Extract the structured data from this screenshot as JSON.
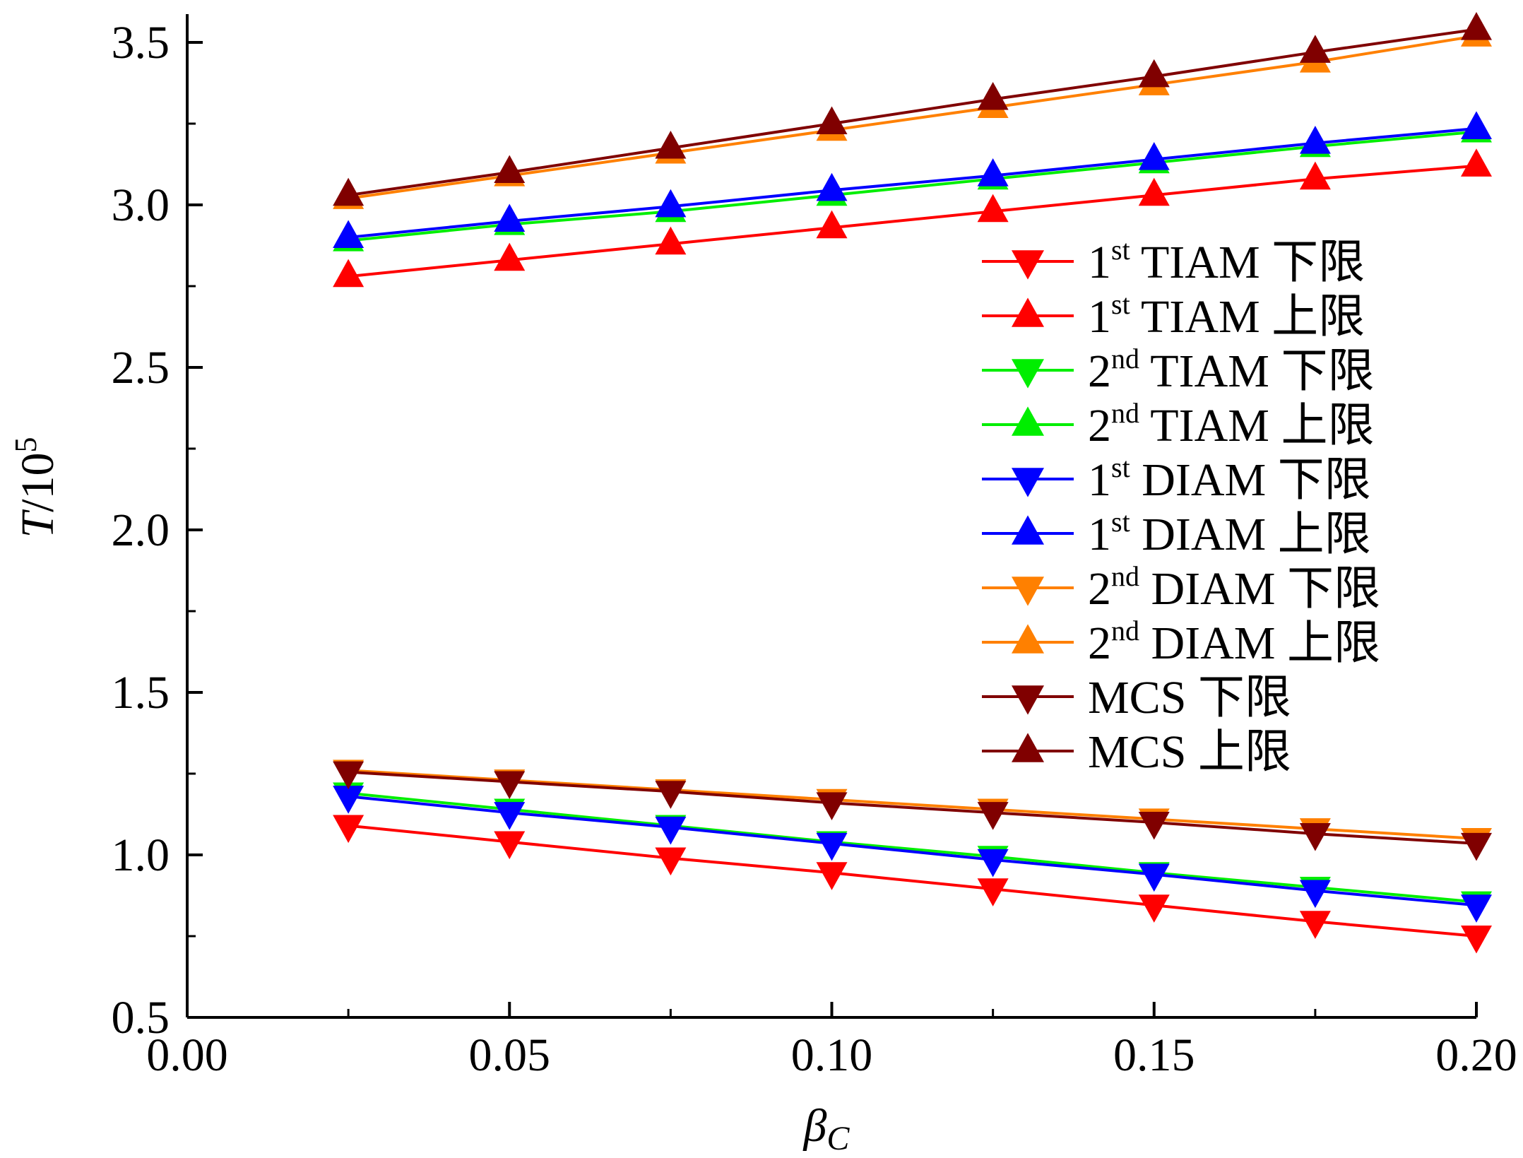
{
  "chart_data": {
    "type": "line",
    "xlabel": "βC",
    "xlabel_main": "β",
    "xlabel_sub": "C",
    "ylabel": "T/10^5",
    "ylabel_main": "T",
    "ylabel_rest": "/10",
    "ylabel_exp": "5",
    "xlim": [
      0.0,
      0.2
    ],
    "ylim": [
      0.5,
      3.5
    ],
    "xticks": [
      "0.00",
      "0.05",
      "0.10",
      "0.15",
      "0.20"
    ],
    "yticks": [
      "0.5",
      "1.0",
      "1.5",
      "2.0",
      "2.5",
      "3.0",
      "3.5"
    ],
    "grid": false,
    "legend_position": "right",
    "x": [
      0.025,
      0.05,
      0.075,
      0.1,
      0.125,
      0.15,
      0.175,
      0.2
    ],
    "series": [
      {
        "name": "1st TIAM 下限",
        "legend_prefix": "1",
        "legend_sup": "st",
        "legend_rest": "TIAM 下限",
        "color": "#ff0000",
        "marker": "down",
        "values": [
          1.09,
          1.04,
          0.99,
          0.945,
          0.895,
          0.845,
          0.795,
          0.75
        ]
      },
      {
        "name": "1st TIAM 上限",
        "legend_prefix": "1",
        "legend_sup": "st",
        "legend_rest": "TIAM 上限",
        "color": "#ff0000",
        "marker": "up",
        "values": [
          2.78,
          2.83,
          2.88,
          2.93,
          2.98,
          3.03,
          3.08,
          3.12
        ]
      },
      {
        "name": "2nd TIAM 下限",
        "legend_prefix": "2",
        "legend_sup": "nd",
        "legend_rest": "TIAM 下限",
        "color": "#00ee00",
        "marker": "down",
        "values": [
          1.19,
          1.14,
          1.09,
          1.04,
          0.995,
          0.945,
          0.9,
          0.855
        ]
      },
      {
        "name": "2nd TIAM 上限",
        "legend_prefix": "2",
        "legend_sup": "nd",
        "legend_rest": "TIAM 上限",
        "color": "#00ee00",
        "marker": "up",
        "values": [
          2.89,
          2.94,
          2.98,
          3.03,
          3.08,
          3.13,
          3.18,
          3.225
        ]
      },
      {
        "name": "1st DIAM 下限",
        "legend_prefix": "1",
        "legend_sup": "st",
        "legend_rest": "DIAM 下限",
        "color": "#0000ff",
        "marker": "down",
        "values": [
          1.18,
          1.13,
          1.085,
          1.035,
          0.985,
          0.94,
          0.89,
          0.845
        ]
      },
      {
        "name": "1st DIAM 上限",
        "legend_prefix": "1",
        "legend_sup": "st",
        "legend_rest": "DIAM 上限",
        "color": "#0000ff",
        "marker": "up",
        "values": [
          2.9,
          2.95,
          2.995,
          3.045,
          3.09,
          3.14,
          3.19,
          3.235
        ]
      },
      {
        "name": "2nd DIAM 下限",
        "legend_prefix": "2",
        "legend_sup": "nd",
        "legend_rest": "DIAM 下限",
        "color": "#ff8000",
        "marker": "down",
        "values": [
          1.26,
          1.23,
          1.2,
          1.17,
          1.14,
          1.11,
          1.08,
          1.05
        ]
      },
      {
        "name": "2nd DIAM 上限",
        "legend_prefix": "2",
        "legend_sup": "nd",
        "legend_rest": "DIAM 上限",
        "color": "#ff8000",
        "marker": "up",
        "values": [
          3.02,
          3.09,
          3.16,
          3.23,
          3.3,
          3.37,
          3.44,
          3.52
        ]
      },
      {
        "name": "MCS 下限",
        "legend_prefix": "",
        "legend_sup": "",
        "legend_rest": "MCS 下限",
        "color": "#800000",
        "marker": "down",
        "values": [
          1.255,
          1.225,
          1.195,
          1.16,
          1.13,
          1.1,
          1.065,
          1.035
        ]
      },
      {
        "name": "MCS 上限",
        "legend_prefix": "",
        "legend_sup": "",
        "legend_rest": "MCS  上限",
        "color": "#800000",
        "marker": "up",
        "values": [
          3.03,
          3.1,
          3.175,
          3.25,
          3.325,
          3.395,
          3.47,
          3.54
        ]
      }
    ]
  }
}
